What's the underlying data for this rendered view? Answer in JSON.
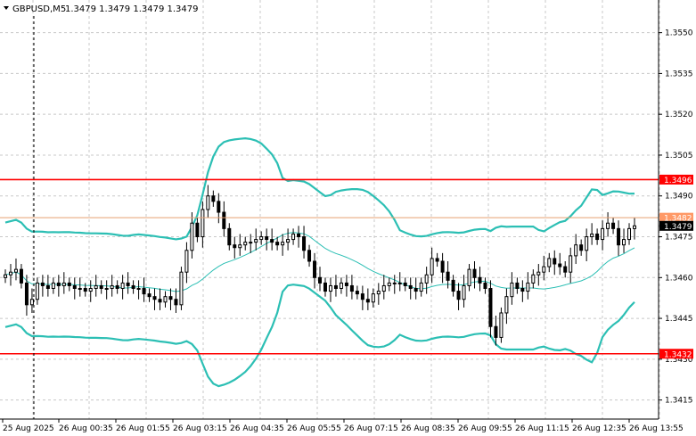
{
  "header": {
    "symbol_text": "GBPUSD,M5",
    "ohlc_text": "1.3479 1.3479 1.3479 1.3479"
  },
  "colors": {
    "background": "#ffffff",
    "grid": "#c8c8c8",
    "candle": "#000000",
    "band": "#2cbfb4",
    "level_line": "#ff0000",
    "price_line": "#e8a070",
    "price_tag_bg": "#000000",
    "price_tag_text": "#ffffff",
    "level_tag_bg": "#ff0000",
    "ask_tag_bg": "#ff9966"
  },
  "levels": {
    "resistance": "1.3496",
    "support": "1.3432",
    "ask": "1.3482",
    "current": "1.3479"
  },
  "chart_data": {
    "type": "candlestick",
    "title": "",
    "symbol": "GBPUSD",
    "timeframe": "M5",
    "y_ticks": [
      "1.3550",
      "1.3535",
      "1.3520",
      "1.3505",
      "1.3490",
      "1.3475",
      "1.3460",
      "1.3445",
      "1.3430",
      "1.3415"
    ],
    "ylim": [
      1.3408,
      1.3562
    ],
    "x_ticks": [
      "25 Aug 2025",
      "26 Aug 00:35",
      "26 Aug 01:55",
      "26 Aug 03:15",
      "26 Aug 04:35",
      "26 Aug 05:55",
      "26 Aug 07:15",
      "26 Aug 08:35",
      "26 Aug 09:55",
      "26 Aug 11:15",
      "26 Aug 12:35",
      "26 Aug 13:55"
    ],
    "horizontal_lines": [
      {
        "value": 1.3496,
        "label": "1.3496"
      },
      {
        "value": 1.3432,
        "label": "1.3432"
      },
      {
        "value": 1.3482,
        "label": "1.3482"
      }
    ],
    "candles_close": [
      1.3461,
      1.3462,
      1.3463,
      1.3458,
      1.345,
      1.3452,
      1.3458,
      1.3457,
      1.3456,
      1.3458,
      1.3457,
      1.3458,
      1.3457,
      1.3456,
      1.3456,
      1.3455,
      1.3456,
      1.3457,
      1.3456,
      1.3456,
      1.3457,
      1.3456,
      1.3458,
      1.3457,
      1.3456,
      1.3456,
      1.3454,
      1.3453,
      1.3452,
      1.3451,
      1.3453,
      1.3452,
      1.345,
      1.3462,
      1.347,
      1.348,
      1.3475,
      1.3485,
      1.349,
      1.3488,
      1.3484,
      1.3478,
      1.3472,
      1.3471,
      1.3472,
      1.3473,
      1.3473,
      1.3474,
      1.3475,
      1.3474,
      1.3473,
      1.3472,
      1.3473,
      1.3474,
      1.3476,
      1.3475,
      1.347,
      1.3466,
      1.346,
      1.3458,
      1.3455,
      1.3457,
      1.3456,
      1.3458,
      1.3457,
      1.3455,
      1.3454,
      1.3452,
      1.3451,
      1.3454,
      1.3455,
      1.3457,
      1.3458,
      1.3458,
      1.3458,
      1.3457,
      1.3456,
      1.3455,
      1.3458,
      1.3461,
      1.3467,
      1.3466,
      1.3462,
      1.3459,
      1.3455,
      1.3452,
      1.3457,
      1.3463,
      1.346,
      1.3458,
      1.3456,
      1.3442,
      1.3438,
      1.3447,
      1.3453,
      1.3458,
      1.3456,
      1.3455,
      1.3458,
      1.3461,
      1.3462,
      1.3464,
      1.3467,
      1.3465,
      1.3464,
      1.3462,
      1.3468,
      1.3472,
      1.347,
      1.3475,
      1.3476,
      1.3474,
      1.3478,
      1.348,
      1.3478,
      1.3472,
      1.3474,
      1.3478,
      1.3479
    ],
    "bollinger": {
      "period": 20,
      "deviation": 2,
      "upper_color": "#2cbfb4",
      "middle_color": "#2cbfb4",
      "lower_color": "#2cbfb4"
    },
    "grid": true,
    "last_price": 1.3479
  }
}
